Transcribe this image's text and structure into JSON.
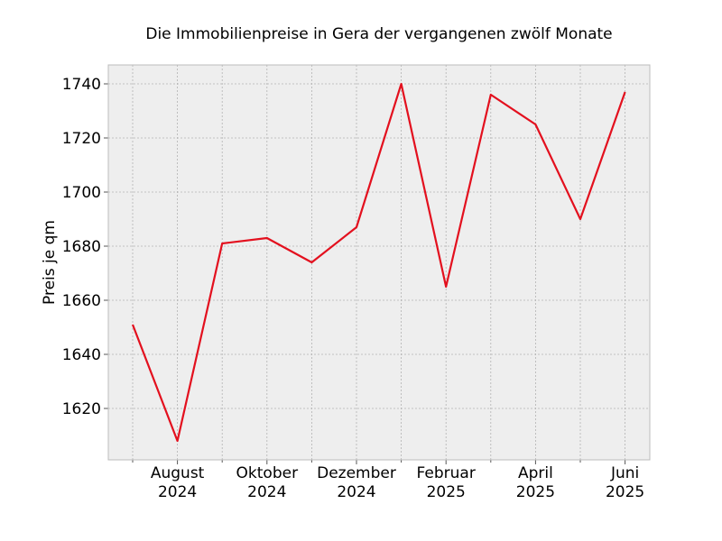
{
  "chart_data": {
    "type": "line",
    "title": "Die Immobilienpreise in Gera der vergangenen zwölf Monate",
    "xlabel": "",
    "ylabel": "Preis je qm",
    "x": [
      "2024-07",
      "2024-08",
      "2024-09",
      "2024-10",
      "2024-11",
      "2024-12",
      "2025-01",
      "2025-02",
      "2025-03",
      "2025-04",
      "2025-05",
      "2025-06"
    ],
    "series": [
      {
        "values": [
          1651,
          1608,
          1681,
          1683,
          1674,
          1687,
          1740,
          1665,
          1736,
          1725,
          1690,
          1737
        ],
        "color": "#e3101e"
      }
    ],
    "ylim": [
      1601,
      1747
    ],
    "yticks": [
      1620,
      1640,
      1660,
      1680,
      1700,
      1720,
      1740
    ],
    "xticks": [
      {
        "x": "2024-08",
        "line1": "August",
        "line2": "2024"
      },
      {
        "x": "2024-10",
        "line1": "Oktober",
        "line2": "2024"
      },
      {
        "x": "2024-12",
        "line1": "Dezember",
        "line2": "2024"
      },
      {
        "x": "2025-02",
        "line1": "Februar",
        "line2": "2025"
      },
      {
        "x": "2025-04",
        "line1": "April",
        "line2": "2025"
      },
      {
        "x": "2025-06",
        "line1": "Juni",
        "line2": "2025"
      }
    ],
    "minor_xticks": [
      "2024-07",
      "2024-09",
      "2024-11",
      "2025-01",
      "2025-03",
      "2025-05"
    ],
    "grid": true,
    "background": "#eeeeee"
  }
}
